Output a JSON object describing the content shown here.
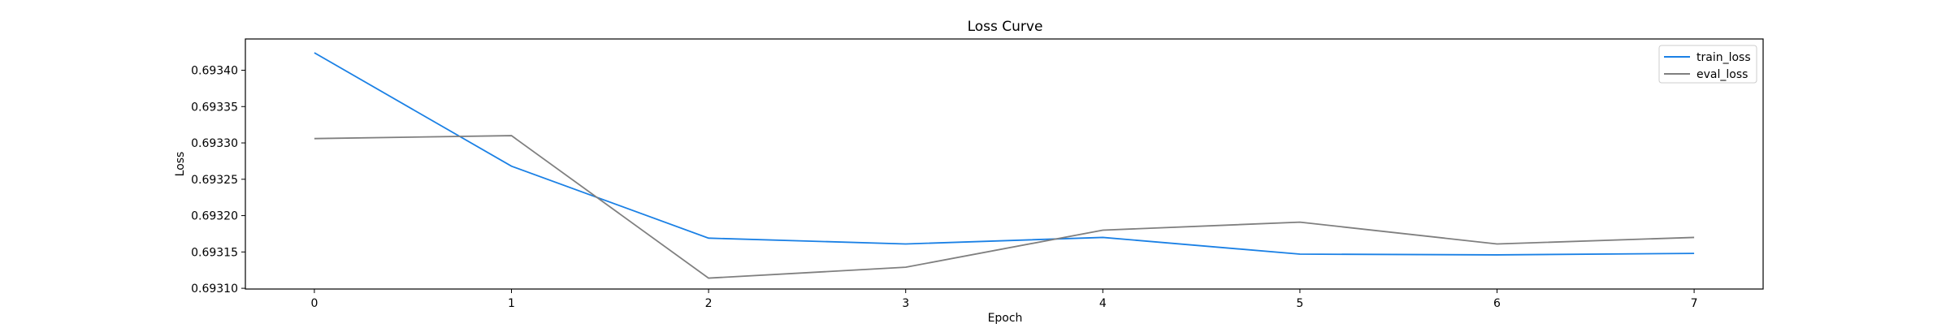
{
  "chart_data": {
    "type": "line",
    "title": "Loss Curve",
    "xlabel": "Epoch",
    "ylabel": "Loss",
    "x": [
      0,
      1,
      2,
      3,
      4,
      5,
      6,
      7
    ],
    "xlim": [
      -0.35,
      7.35
    ],
    "ylim": [
      0.693099,
      0.693443
    ],
    "x_ticks": [
      0,
      1,
      2,
      3,
      4,
      5,
      6,
      7
    ],
    "y_ticks": [
      0.6931,
      0.69315,
      0.6932,
      0.69325,
      0.6933,
      0.69335,
      0.6934
    ],
    "y_tick_labels": [
      "0.69310",
      "0.69315",
      "0.69320",
      "0.69325",
      "0.69330",
      "0.69335",
      "0.69340"
    ],
    "grid": false,
    "legend": "top-right",
    "series": [
      {
        "name": "train_loss",
        "color": "#1a80e5",
        "values": [
          0.693424,
          0.693268,
          0.693169,
          0.693161,
          0.69317,
          0.693147,
          0.693146,
          0.693148
        ]
      },
      {
        "name": "eval_loss",
        "color": "#7f7f7f",
        "values": [
          0.693306,
          0.69331,
          0.693114,
          0.693129,
          0.69318,
          0.693191,
          0.693161,
          0.69317
        ]
      }
    ]
  }
}
